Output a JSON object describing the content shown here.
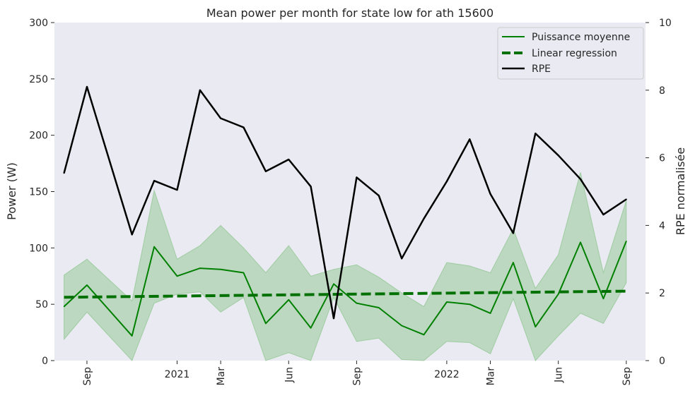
{
  "chart_data": {
    "type": "line",
    "title": "Mean power per month for state low for ath 15600",
    "ylabel_left": "Power (W)",
    "ylabel_right": "RPE normalisée",
    "ylim_left": [
      0,
      300
    ],
    "ylim_right": [
      0,
      10
    ],
    "yticks_left": [
      0,
      50,
      100,
      150,
      200,
      250,
      300
    ],
    "yticks_right": [
      0,
      2,
      4,
      6,
      8,
      10
    ],
    "x_range": [
      "2020-07-19",
      "2022-09-27"
    ],
    "x_ticks": [
      {
        "date": "2020-09-01",
        "label": "Sep",
        "rotated": true
      },
      {
        "date": "2021-01-01",
        "label": "2021",
        "rotated": false
      },
      {
        "date": "2021-03-01",
        "label": "Mar",
        "rotated": true
      },
      {
        "date": "2021-06-01",
        "label": "Jun",
        "rotated": true
      },
      {
        "date": "2021-09-01",
        "label": "Sep",
        "rotated": true
      },
      {
        "date": "2022-01-01",
        "label": "2022",
        "rotated": false
      },
      {
        "date": "2022-03-01",
        "label": "Mar",
        "rotated": true
      },
      {
        "date": "2022-06-01",
        "label": "Jun",
        "rotated": true
      },
      {
        "date": "2022-09-01",
        "label": "Sep",
        "rotated": true
      }
    ],
    "grid": false,
    "legend_position": "top-right",
    "legend": [
      {
        "label": "Puissance moyenne",
        "style": "thin-solid",
        "color": "#008000"
      },
      {
        "label": "Linear regression",
        "style": "thick-dashed",
        "color": "#007000"
      },
      {
        "label": "RPE",
        "style": "solid",
        "color": "#000000"
      }
    ],
    "colors": {
      "background": "#eaeaf2",
      "power": "#008000",
      "band": "#7fbf7f",
      "regression": "#007000",
      "rpe": "#000000"
    },
    "series": [
      {
        "name": "Puissance moyenne",
        "axis": "left",
        "points": [
          {
            "x": "2020-08-01",
            "y": 48
          },
          {
            "x": "2020-09-01",
            "y": 67
          },
          {
            "x": "2020-11-01",
            "y": 22
          },
          {
            "x": "2020-12-01",
            "y": 101
          },
          {
            "x": "2021-01-01",
            "y": 75
          },
          {
            "x": "2021-02-01",
            "y": 82
          },
          {
            "x": "2021-03-01",
            "y": 81
          },
          {
            "x": "2021-04-01",
            "y": 78
          },
          {
            "x": "2021-05-01",
            "y": 33
          },
          {
            "x": "2021-06-01",
            "y": 54
          },
          {
            "x": "2021-07-01",
            "y": 29
          },
          {
            "x": "2021-08-01",
            "y": 68
          },
          {
            "x": "2021-09-01",
            "y": 51
          },
          {
            "x": "2021-10-01",
            "y": 47
          },
          {
            "x": "2021-11-01",
            "y": 31
          },
          {
            "x": "2021-12-01",
            "y": 23
          },
          {
            "x": "2022-01-01",
            "y": 52
          },
          {
            "x": "2022-02-01",
            "y": 50
          },
          {
            "x": "2022-03-01",
            "y": 42
          },
          {
            "x": "2022-04-01",
            "y": 87
          },
          {
            "x": "2022-05-01",
            "y": 30
          },
          {
            "x": "2022-06-01",
            "y": 59
          },
          {
            "x": "2022-07-01",
            "y": 105
          },
          {
            "x": "2022-08-01",
            "y": 55
          },
          {
            "x": "2022-09-01",
            "y": 106
          }
        ],
        "band_upper": [
          76,
          90,
          53,
          151,
          90,
          102,
          120,
          100,
          78,
          102,
          75,
          81,
          85,
          74,
          60,
          48,
          87,
          84,
          78,
          117,
          64,
          94,
          167,
          78,
          142
        ],
        "band_lower": [
          19,
          43,
          -8,
          51,
          59,
          61,
          43,
          56,
          -12,
          7,
          -16,
          56,
          17,
          20,
          1,
          -1,
          17,
          16,
          6,
          55,
          -3,
          22,
          42,
          33,
          69
        ]
      },
      {
        "name": "Linear regression",
        "axis": "left",
        "points": [
          {
            "x": "2020-08-01",
            "y": 56.2
          },
          {
            "x": "2022-09-01",
            "y": 61.6
          }
        ]
      },
      {
        "name": "RPE",
        "axis": "right",
        "points": [
          {
            "x": "2020-08-01",
            "y": 5.55
          },
          {
            "x": "2020-09-01",
            "y": 8.1
          },
          {
            "x": "2020-11-01",
            "y": 3.73
          },
          {
            "x": "2020-12-01",
            "y": 5.32
          },
          {
            "x": "2021-01-01",
            "y": 5.05
          },
          {
            "x": "2021-02-01",
            "y": 8.0
          },
          {
            "x": "2021-03-01",
            "y": 7.17
          },
          {
            "x": "2021-04-01",
            "y": 6.9
          },
          {
            "x": "2021-05-01",
            "y": 5.6
          },
          {
            "x": "2021-06-01",
            "y": 5.95
          },
          {
            "x": "2021-07-01",
            "y": 5.15
          },
          {
            "x": "2021-08-01",
            "y": 1.25
          },
          {
            "x": "2021-09-01",
            "y": 5.42
          },
          {
            "x": "2021-10-01",
            "y": 4.88
          },
          {
            "x": "2021-11-01",
            "y": 3.02
          },
          {
            "x": "2021-12-01",
            "y": 4.2
          },
          {
            "x": "2022-01-01",
            "y": 5.3
          },
          {
            "x": "2022-02-01",
            "y": 6.55
          },
          {
            "x": "2022-03-01",
            "y": 4.93
          },
          {
            "x": "2022-04-01",
            "y": 3.77
          },
          {
            "x": "2022-05-01",
            "y": 6.72
          },
          {
            "x": "2022-06-01",
            "y": 6.07
          },
          {
            "x": "2022-07-01",
            "y": 5.37
          },
          {
            "x": "2022-08-01",
            "y": 4.32
          },
          {
            "x": "2022-09-01",
            "y": 4.77
          }
        ]
      }
    ]
  }
}
